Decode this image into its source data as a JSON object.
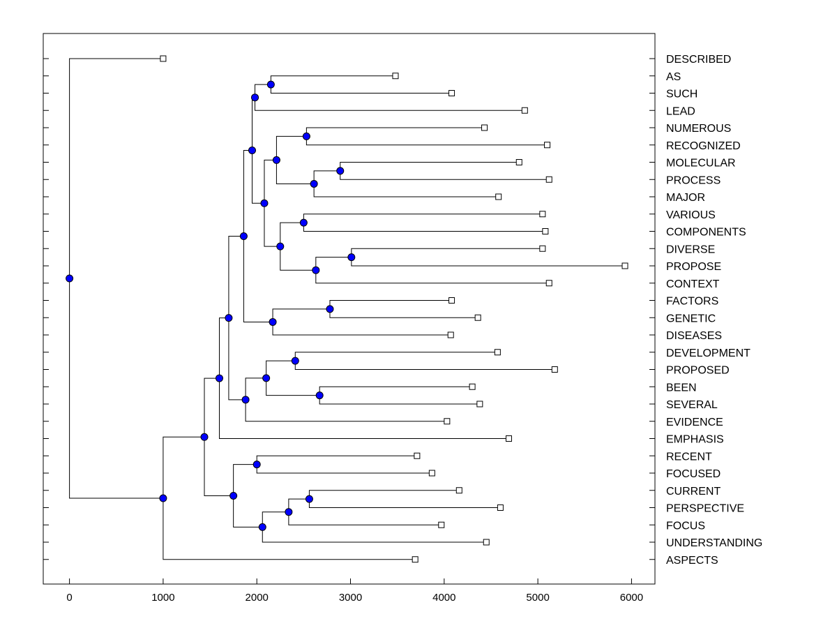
{
  "chart_data": {
    "type": "dendrogram",
    "title": "",
    "xlabel": "",
    "ylabel": "",
    "xlim": [
      -280,
      6250
    ],
    "xticks": [
      0,
      1000,
      2000,
      3000,
      4000,
      5000,
      6000
    ],
    "leaves": [
      {
        "label": "DESCRIBED",
        "x": 1000
      },
      {
        "label": "AS",
        "x": 3480
      },
      {
        "label": "SUCH",
        "x": 4080
      },
      {
        "label": "LEAD",
        "x": 4860
      },
      {
        "label": "NUMEROUS",
        "x": 4430
      },
      {
        "label": "RECOGNIZED",
        "x": 5100
      },
      {
        "label": "MOLECULAR",
        "x": 4800
      },
      {
        "label": "PROCESS",
        "x": 5120
      },
      {
        "label": "MAJOR",
        "x": 4580
      },
      {
        "label": "VARIOUS",
        "x": 5050
      },
      {
        "label": "COMPONENTS",
        "x": 5080
      },
      {
        "label": "DIVERSE",
        "x": 5050
      },
      {
        "label": "PROPOSE",
        "x": 5930
      },
      {
        "label": "CONTEXT",
        "x": 5120
      },
      {
        "label": "FACTORS",
        "x": 4080
      },
      {
        "label": "GENETIC",
        "x": 4360
      },
      {
        "label": "DISEASES",
        "x": 4070
      },
      {
        "label": "DEVELOPMENT",
        "x": 4570
      },
      {
        "label": "PROPOSED",
        "x": 5180
      },
      {
        "label": "BEEN",
        "x": 4300
      },
      {
        "label": "SEVERAL",
        "x": 4380
      },
      {
        "label": "EVIDENCE",
        "x": 4030
      },
      {
        "label": "EMPHASIS",
        "x": 4690
      },
      {
        "label": "RECENT",
        "x": 3710
      },
      {
        "label": "FOCUSED",
        "x": 3870
      },
      {
        "label": "CURRENT",
        "x": 4160
      },
      {
        "label": "PERSPECTIVE",
        "x": 4600
      },
      {
        "label": "FOCUS",
        "x": 3970
      },
      {
        "label": "UNDERSTANDING",
        "x": 4450
      },
      {
        "label": "ASPECTS",
        "x": 3690
      }
    ],
    "merges": [
      {
        "id": "n1",
        "x": 2150,
        "children": [
          "AS",
          "SUCH"
        ]
      },
      {
        "id": "n2",
        "x": 1980,
        "children": [
          "n1",
          "LEAD"
        ]
      },
      {
        "id": "n3",
        "x": 2530,
        "children": [
          "NUMEROUS",
          "RECOGNIZED"
        ]
      },
      {
        "id": "n4",
        "x": 2890,
        "children": [
          "MOLECULAR",
          "PROCESS"
        ]
      },
      {
        "id": "n5",
        "x": 2610,
        "children": [
          "n4",
          "MAJOR"
        ]
      },
      {
        "id": "n6",
        "x": 2210,
        "children": [
          "n3",
          "n5"
        ]
      },
      {
        "id": "n7",
        "x": 2500,
        "children": [
          "VARIOUS",
          "COMPONENTS"
        ]
      },
      {
        "id": "n8",
        "x": 3010,
        "children": [
          "DIVERSE",
          "PROPOSE"
        ]
      },
      {
        "id": "n9",
        "x": 2630,
        "children": [
          "n8",
          "CONTEXT"
        ]
      },
      {
        "id": "n10",
        "x": 2250,
        "children": [
          "n7",
          "n9"
        ]
      },
      {
        "id": "n11",
        "x": 2080,
        "children": [
          "n6",
          "n10"
        ]
      },
      {
        "id": "n12",
        "x": 1950,
        "children": [
          "n2",
          "n11"
        ]
      },
      {
        "id": "n13",
        "x": 2780,
        "children": [
          "FACTORS",
          "GENETIC"
        ]
      },
      {
        "id": "n14",
        "x": 2170,
        "children": [
          "n13",
          "DISEASES"
        ]
      },
      {
        "id": "n15",
        "x": 1860,
        "children": [
          "n12",
          "n14"
        ]
      },
      {
        "id": "n16",
        "x": 2410,
        "children": [
          "DEVELOPMENT",
          "PROPOSED"
        ]
      },
      {
        "id": "n17",
        "x": 2670,
        "children": [
          "BEEN",
          "SEVERAL"
        ]
      },
      {
        "id": "n18",
        "x": 2100,
        "children": [
          "n16",
          "n17"
        ]
      },
      {
        "id": "n19",
        "x": 1880,
        "children": [
          "n18",
          "EVIDENCE"
        ]
      },
      {
        "id": "n20",
        "x": 1700,
        "children": [
          "n15",
          "n19"
        ]
      },
      {
        "id": "n21",
        "x": 1600,
        "children": [
          "n20",
          "EMPHASIS"
        ]
      },
      {
        "id": "n22",
        "x": 2000,
        "children": [
          "RECENT",
          "FOCUSED"
        ]
      },
      {
        "id": "n23",
        "x": 2560,
        "children": [
          "CURRENT",
          "PERSPECTIVE"
        ]
      },
      {
        "id": "n24",
        "x": 2340,
        "children": [
          "n23",
          "FOCUS"
        ]
      },
      {
        "id": "n25",
        "x": 2060,
        "children": [
          "n24",
          "UNDERSTANDING"
        ]
      },
      {
        "id": "n26",
        "x": 1750,
        "children": [
          "n22",
          "n25"
        ]
      },
      {
        "id": "n27",
        "x": 1440,
        "children": [
          "n21",
          "n26"
        ]
      },
      {
        "id": "n28",
        "x": 1000,
        "children": [
          "n27",
          "ASPECTS"
        ]
      },
      {
        "id": "n29",
        "x": 0,
        "children": [
          "DESCRIBED",
          "n28"
        ]
      }
    ],
    "colors": {
      "node_fill": "#0000ff",
      "leaf_fill": "#ffffff",
      "line": "#000000"
    }
  }
}
